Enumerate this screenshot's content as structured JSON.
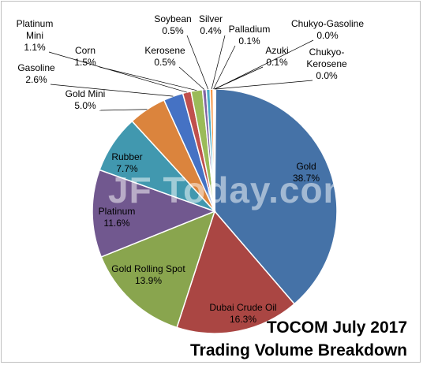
{
  "chart_data": {
    "type": "pie",
    "title_line1": "TOCOM July 2017",
    "title_line2": "Trading Volume Breakdown",
    "watermark": "JF Today.com",
    "start_angle_deg": 0,
    "direction": "clockwise",
    "slices": [
      {
        "label": "Gold",
        "value": 38.7,
        "pct": "38.7%",
        "color": "#4572a7"
      },
      {
        "label": "Dubai Crude Oil",
        "value": 16.3,
        "pct": "16.3%",
        "color": "#aa4643"
      },
      {
        "label": "Gold Rolling Spot",
        "value": 13.9,
        "pct": "13.9%",
        "color": "#89a54e"
      },
      {
        "label": "Platinum",
        "value": 11.6,
        "pct": "11.6%",
        "color": "#71588f"
      },
      {
        "label": "Rubber",
        "value": 7.7,
        "pct": "7.7%",
        "color": "#4198af"
      },
      {
        "label": "Gold Mini",
        "value": 5.0,
        "pct": "5.0%",
        "color": "#db843d"
      },
      {
        "label": "Gasoline",
        "value": 2.6,
        "pct": "2.6%",
        "color": "#4572c4"
      },
      {
        "label": "Platinum Mini",
        "value": 1.1,
        "pct": "1.1%",
        "color": "#c0504d"
      },
      {
        "label": "Corn",
        "value": 1.5,
        "pct": "1.5%",
        "color": "#9bbb59"
      },
      {
        "label": "Kerosene",
        "value": 0.5,
        "pct": "0.5%",
        "color": "#8064a2"
      },
      {
        "label": "Soybean",
        "value": 0.5,
        "pct": "0.5%",
        "color": "#4bacc6"
      },
      {
        "label": "Silver",
        "value": 0.4,
        "pct": "0.4%",
        "color": "#f79646"
      },
      {
        "label": "Palladium",
        "value": 0.1,
        "pct": "0.1%",
        "color": "#2c4d75"
      },
      {
        "label": "Azuki",
        "value": 0.1,
        "pct": "0.1%",
        "color": "#772c2a"
      },
      {
        "label": "Chukyo-Gasoline",
        "value": 0.0,
        "pct": "0.0%",
        "color": "#5f7530"
      },
      {
        "label": "Chukyo-Kerosene",
        "value": 0.0,
        "pct": "0.0%",
        "color": "#4d3b62"
      }
    ]
  }
}
